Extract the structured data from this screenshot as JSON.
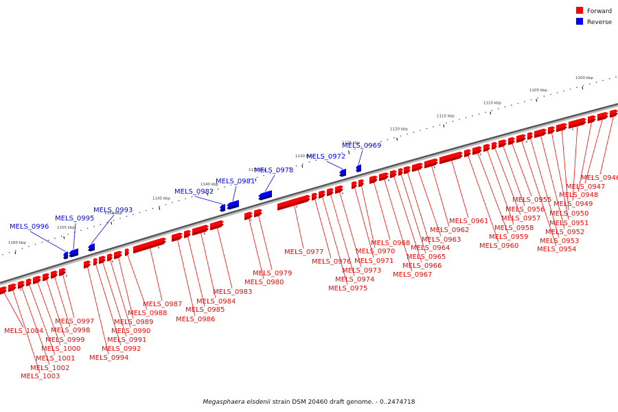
{
  "caption": {
    "species": "Megasphaera elsdenii",
    "rest": "strain DSM 20460 draft genome. - 0..2474718"
  },
  "legend": {
    "forward_label": "Forward",
    "reverse_label": "Reverse",
    "forward_color": "#ff0000",
    "reverse_color": "#0000ff",
    "placement": "top-right"
  },
  "ticks": [
    "1100 kbp",
    "1105 kbp",
    "1110 kbp",
    "1115 kbp",
    "1120 kbp",
    "1125 kbp",
    "1130 kbp",
    "1135 kbp",
    "1140 kbp",
    "1145 kbp",
    "1150 kbp",
    "1155 kbp",
    "1160 kbp"
  ],
  "forward_genes": [
    "MELS_0946",
    "MELS_0947",
    "MELS_0948",
    "MELS_0949",
    "MELS_0950",
    "MELS_0951",
    "MELS_0952",
    "MELS_0953",
    "MELS_0954",
    "MELS_0955",
    "MELS_0956",
    "MELS_0957",
    "MELS_0958",
    "MELS_0959",
    "MELS_0960",
    "MELS_0961",
    "MELS_0962",
    "MELS_0963",
    "MELS_0964",
    "MELS_0965",
    "MELS_0966",
    "MELS_0967",
    "MELS_0968",
    "MELS_0970",
    "MELS_0971",
    "MELS_0973",
    "MELS_0974",
    "MELS_0975",
    "MELS_0976",
    "MELS_0977",
    "MELS_0979",
    "MELS_0980",
    "MELS_0983",
    "MELS_0984",
    "MELS_0985",
    "MELS_0986",
    "MELS_0987",
    "MELS_0988",
    "MELS_0989",
    "MELS_0990",
    "MELS_0991",
    "MELS_0992",
    "MELS_0994",
    "MELS_0997",
    "MELS_0998",
    "MELS_0999",
    "MELS_1000",
    "MELS_1001",
    "MELS_1002",
    "MELS_1003",
    "MELS_1004"
  ],
  "reverse_genes": [
    "MELS_0969",
    "MELS_0972",
    "MELS_0978",
    "MELS_0981",
    "MELS_0982",
    "MELS_0993",
    "MELS_0995",
    "MELS_0996"
  ]
}
